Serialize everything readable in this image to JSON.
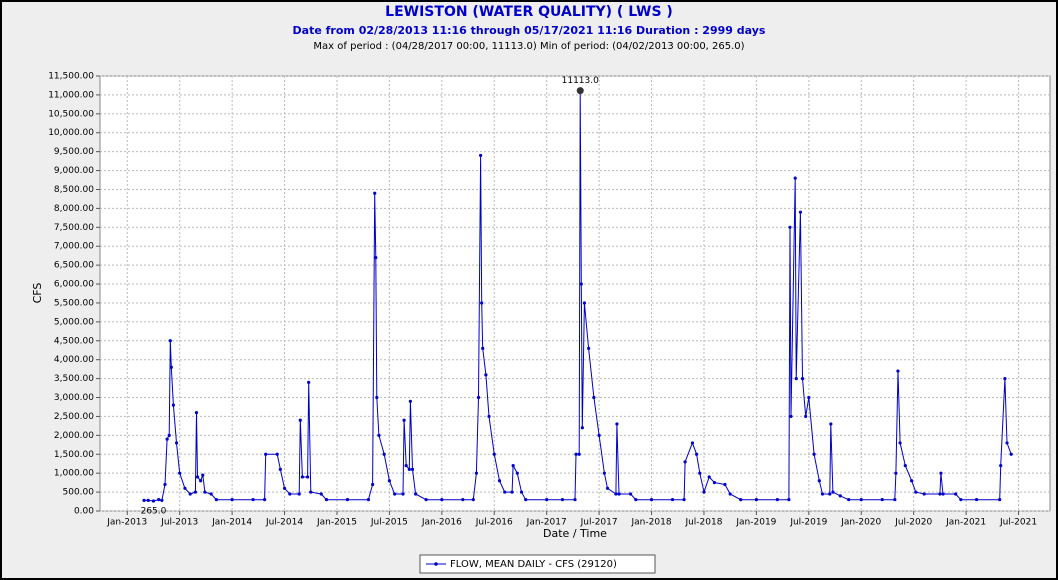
{
  "chart_data": {
    "type": "line",
    "title": "LEWISTON (WATER QUALITY) ( LWS )",
    "subtitle": "Date from 02/28/2013 11:16 through 05/17/2021 11:16 Duration : 2999 days",
    "caption": "Max of period : (04/28/2017 00:00, 11113.0)  Min of period: (04/02/2013 00:00,  265.0)",
    "y_label": "CFS",
    "x_label": "Date / Time",
    "max_label": "11113.0",
    "min_label": "265.0",
    "grid": true,
    "legend": "bottom",
    "xlim": [
      2012.74,
      2021.8
    ],
    "ylim": [
      0,
      11500
    ],
    "xticks": [
      {
        "value": 2013.0,
        "label": "Jan-2013"
      },
      {
        "value": 2013.5,
        "label": "Jul-2013"
      },
      {
        "value": 2014.0,
        "label": "Jan-2014"
      },
      {
        "value": 2014.5,
        "label": "Jul-2014"
      },
      {
        "value": 2015.0,
        "label": "Jan-2015"
      },
      {
        "value": 2015.5,
        "label": "Jul-2015"
      },
      {
        "value": 2016.0,
        "label": "Jan-2016"
      },
      {
        "value": 2016.5,
        "label": "Jul-2016"
      },
      {
        "value": 2017.0,
        "label": "Jan-2017"
      },
      {
        "value": 2017.5,
        "label": "Jul-2017"
      },
      {
        "value": 2018.0,
        "label": "Jan-2018"
      },
      {
        "value": 2018.5,
        "label": "Jul-2018"
      },
      {
        "value": 2019.0,
        "label": "Jan-2019"
      },
      {
        "value": 2019.5,
        "label": "Jul-2019"
      },
      {
        "value": 2020.0,
        "label": "Jan-2020"
      },
      {
        "value": 2020.5,
        "label": "Jul-2020"
      },
      {
        "value": 2021.0,
        "label": "Jan-2021"
      },
      {
        "value": 2021.5,
        "label": "Jul-2021"
      }
    ],
    "yticks": [
      {
        "value": 0,
        "label": "0.00"
      },
      {
        "value": 500,
        "label": "500.00"
      },
      {
        "value": 1000,
        "label": "1,000.00"
      },
      {
        "value": 1500,
        "label": "1,500.00"
      },
      {
        "value": 2000,
        "label": "2,000.00"
      },
      {
        "value": 2500,
        "label": "2,500.00"
      },
      {
        "value": 3000,
        "label": "3,000.00"
      },
      {
        "value": 3500,
        "label": "3,500.00"
      },
      {
        "value": 4000,
        "label": "4,000.00"
      },
      {
        "value": 4500,
        "label": "4,500.00"
      },
      {
        "value": 5000,
        "label": "5,000.00"
      },
      {
        "value": 5500,
        "label": "5,500.00"
      },
      {
        "value": 6000,
        "label": "6,000.00"
      },
      {
        "value": 6500,
        "label": "6,500.00"
      },
      {
        "value": 7000,
        "label": "7,000.00"
      },
      {
        "value": 7500,
        "label": "7,500.00"
      },
      {
        "value": 8000,
        "label": "8,000.00"
      },
      {
        "value": 8500,
        "label": "8,500.00"
      },
      {
        "value": 9000,
        "label": "9,000.00"
      },
      {
        "value": 9500,
        "label": "9,500.00"
      },
      {
        "value": 10000,
        "label": "10,000.00"
      },
      {
        "value": 10500,
        "label": "10,500.00"
      },
      {
        "value": 11000,
        "label": "11,000.00"
      },
      {
        "value": 11500,
        "label": "11,500.00"
      }
    ],
    "x": [
      2013.16,
      2013.2,
      2013.25,
      2013.3,
      2013.33,
      2013.36,
      2013.38,
      2013.4,
      2013.41,
      2013.42,
      2013.44,
      2013.47,
      2013.5,
      2013.55,
      2013.6,
      2013.65,
      2013.66,
      2013.67,
      2013.7,
      2013.72,
      2013.74,
      2013.8,
      2013.85,
      2014.0,
      2014.2,
      2014.31,
      2014.32,
      2014.43,
      2014.46,
      2014.5,
      2014.55,
      2014.64,
      2014.65,
      2014.67,
      2014.72,
      2014.73,
      2014.75,
      2014.85,
      2014.9,
      2015.1,
      2015.3,
      2015.34,
      2015.36,
      2015.37,
      2015.38,
      2015.4,
      2015.45,
      2015.5,
      2015.55,
      2015.63,
      2015.64,
      2015.66,
      2015.69,
      2015.7,
      2015.72,
      2015.75,
      2015.85,
      2016.0,
      2016.2,
      2016.3,
      2016.33,
      2016.35,
      2016.37,
      2016.38,
      2016.39,
      2016.42,
      2016.45,
      2016.5,
      2016.55,
      2016.6,
      2016.67,
      2016.68,
      2016.72,
      2016.76,
      2016.8,
      2017.0,
      2017.15,
      2017.27,
      2017.28,
      2017.31,
      2017.32,
      2017.33,
      2017.34,
      2017.36,
      2017.4,
      2017.45,
      2017.5,
      2017.55,
      2017.58,
      2017.66,
      2017.67,
      2017.69,
      2017.8,
      2017.85,
      2018.0,
      2018.2,
      2018.31,
      2018.32,
      2018.39,
      2018.43,
      2018.46,
      2018.5,
      2018.55,
      2018.6,
      2018.7,
      2018.75,
      2018.85,
      2019.0,
      2019.2,
      2019.31,
      2019.32,
      2019.33,
      2019.37,
      2019.38,
      2019.42,
      2019.44,
      2019.47,
      2019.5,
      2019.55,
      2019.6,
      2019.63,
      2019.7,
      2019.71,
      2019.73,
      2019.8,
      2019.88,
      2020.0,
      2020.2,
      2020.32,
      2020.33,
      2020.35,
      2020.37,
      2020.42,
      2020.48,
      2020.52,
      2020.6,
      2020.75,
      2020.76,
      2020.78,
      2020.9,
      2020.95,
      2021.1,
      2021.32,
      2021.33,
      2021.37,
      2021.39,
      2021.43
    ],
    "series": [
      {
        "name": "FLOW, MEAN DAILY - CFS (29120)",
        "color": "#0000cc",
        "values": [
          280,
          280,
          265,
          300,
          280,
          700,
          1900,
          2000,
          4500,
          3800,
          2800,
          1800,
          1000,
          600,
          450,
          500,
          2600,
          900,
          800,
          950,
          500,
          450,
          300,
          300,
          300,
          300,
          1500,
          1500,
          1100,
          600,
          450,
          450,
          2400,
          900,
          900,
          3400,
          500,
          450,
          300,
          300,
          300,
          700,
          8400,
          6700,
          3000,
          2000,
          1500,
          800,
          450,
          450,
          2400,
          1200,
          1100,
          2900,
          1100,
          450,
          300,
          300,
          300,
          300,
          1000,
          3000,
          9400,
          5500,
          4300,
          3600,
          2500,
          1500,
          800,
          500,
          500,
          1200,
          1000,
          500,
          300,
          300,
          300,
          300,
          1500,
          1500,
          11113,
          6000,
          2200,
          5500,
          4300,
          3000,
          2000,
          1000,
          600,
          450,
          2300,
          450,
          450,
          300,
          300,
          300,
          300,
          1300,
          1800,
          1500,
          1000,
          500,
          900,
          750,
          700,
          450,
          300,
          300,
          300,
          300,
          7500,
          2500,
          8800,
          3500,
          7900,
          3500,
          2500,
          3000,
          1500,
          800,
          450,
          450,
          2300,
          500,
          400,
          300,
          300,
          300,
          300,
          1000,
          3700,
          1800,
          1200,
          800,
          500,
          450,
          450,
          1000,
          450,
          450,
          300,
          300,
          300,
          1200,
          3500,
          1800,
          1500
        ]
      }
    ]
  }
}
